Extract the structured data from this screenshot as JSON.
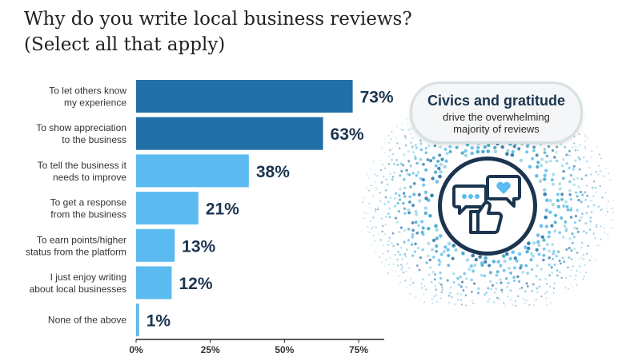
{
  "title_lines": [
    "Why do you write local business reviews?",
    "(Select all that apply)"
  ],
  "callout": {
    "title": "Civics and gratitude",
    "subtitle": "drive the overwhelming majority of reviews"
  },
  "icons": {
    "badge": "speech-bubbles-thumbs-up-icon"
  },
  "colors": {
    "dark_bar": "#2270a8",
    "light_bar": "#5bbaf0",
    "value_text": "#1b3550",
    "accent_navy": "#1b3550"
  },
  "chart_data": {
    "type": "bar",
    "orientation": "horizontal",
    "categories": [
      [
        "To let others know",
        "my experience"
      ],
      [
        "To show appreciation",
        "to the business"
      ],
      [
        "To tell the business it",
        "needs to improve"
      ],
      [
        "To get a response",
        "from the business"
      ],
      [
        "To earn points/higher",
        "status from the platform"
      ],
      [
        "I just enjoy writing",
        "about local businesses"
      ],
      [
        "None of the above"
      ]
    ],
    "values": [
      73,
      63,
      38,
      21,
      13,
      12,
      1
    ],
    "value_labels": [
      "73%",
      "63%",
      "38%",
      "21%",
      "13%",
      "12%",
      "1%"
    ],
    "highlighted": [
      true,
      true,
      false,
      false,
      false,
      false,
      false
    ],
    "x_ticks": [
      0,
      25,
      50,
      75
    ],
    "x_tick_labels": [
      "0%",
      "25%",
      "50%",
      "75%"
    ],
    "xlim": [
      0,
      75
    ],
    "title": "Why do you write local business reviews? (Select all that apply)",
    "grid": false
  }
}
